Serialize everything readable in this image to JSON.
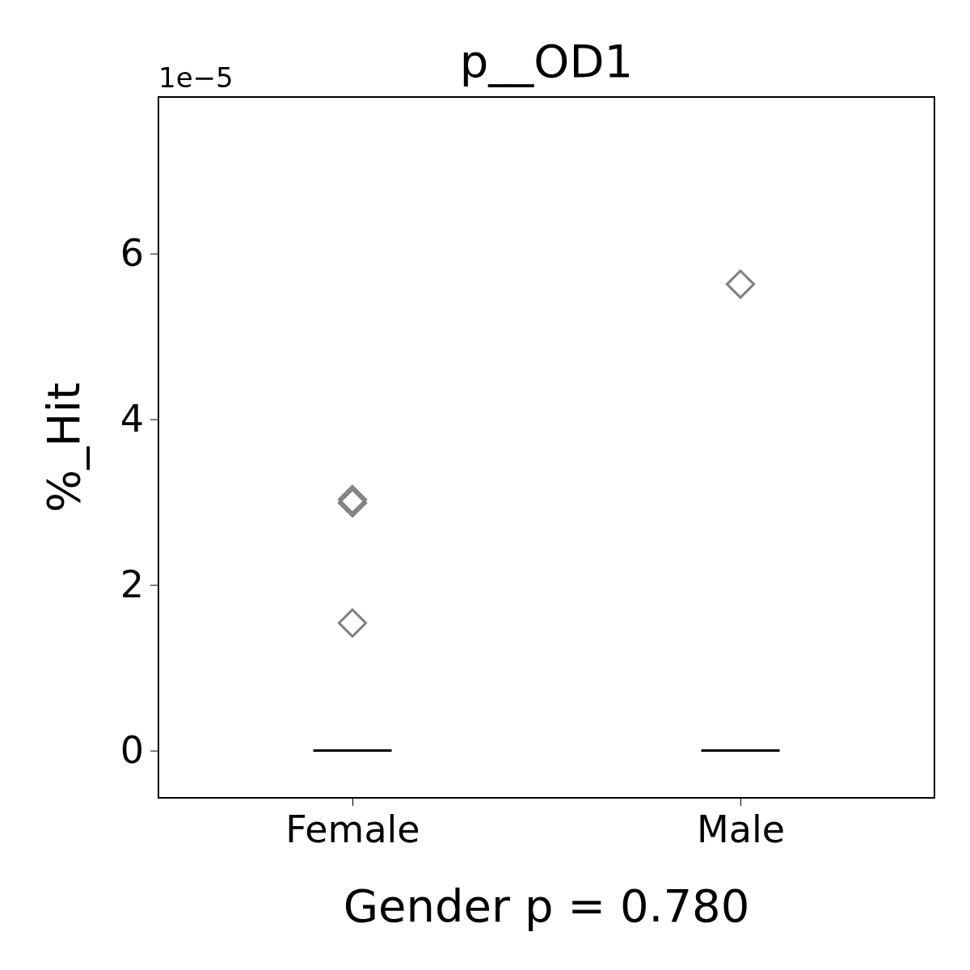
{
  "chart_data": {
    "type": "box",
    "title": "p__OD1",
    "xlabel": "Gender p = 0.780",
    "ylabel": "%_Hit",
    "categories": [
      "Female",
      "Male"
    ],
    "boxes": [
      {
        "low": 0,
        "q1": 0,
        "median": 0,
        "q3": 0,
        "high": 0,
        "outliers": [
          3.03,
          2.99,
          1.54
        ]
      },
      {
        "low": 0,
        "q1": 0,
        "median": 0,
        "q3": 0,
        "high": 0,
        "outliers": [
          5.63
        ]
      }
    ],
    "marker": "diamond",
    "ylim": [
      -0.57,
      7.89
    ],
    "yticks": [
      0,
      2,
      4,
      6
    ],
    "annotations": [
      "1e−5"
    ],
    "grid": false
  }
}
